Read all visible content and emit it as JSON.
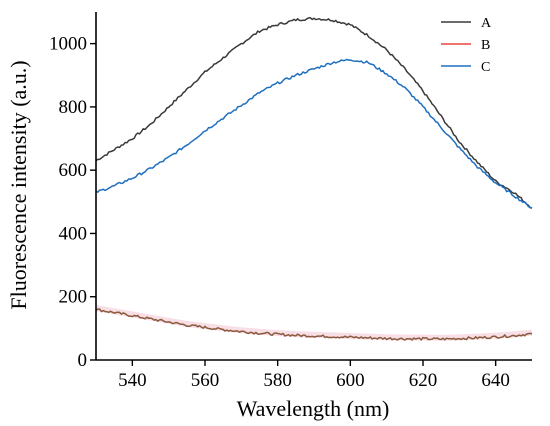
{
  "chart_data": {
    "type": "line",
    "xlabel": "Wavelength (nm)",
    "ylabel": "Fluorescence intensity (a.u.)",
    "xlim": [
      530,
      650
    ],
    "ylim": [
      0,
      1100
    ],
    "xticks": [
      540,
      560,
      580,
      600,
      620,
      640
    ],
    "yticks": [
      0,
      200,
      400,
      600,
      800,
      1000
    ],
    "grid": false,
    "legend_position": "top-right",
    "x": [
      530,
      535,
      540,
      545,
      550,
      555,
      560,
      565,
      570,
      575,
      580,
      585,
      590,
      595,
      600,
      605,
      610,
      615,
      620,
      625,
      630,
      635,
      640,
      645,
      650
    ],
    "series": [
      {
        "name": "A",
        "color": "#3a3a3a",
        "values": [
          630,
          665,
          700,
          745,
          800,
          855,
          910,
          955,
          1000,
          1040,
          1060,
          1075,
          1080,
          1075,
          1060,
          1025,
          980,
          920,
          850,
          770,
          690,
          625,
          565,
          530,
          480
        ]
      },
      {
        "name": "B",
        "color": "#e8463e",
        "trace_color": "#8b5a3c",
        "values": [
          160,
          150,
          140,
          130,
          120,
          110,
          103,
          96,
          90,
          85,
          81,
          78,
          76,
          74,
          72,
          70,
          68,
          67,
          67,
          66,
          68,
          70,
          73,
          77,
          83
        ]
      },
      {
        "name": "C",
        "color": "#1f6fc0",
        "values": [
          530,
          550,
          575,
          605,
          640,
          680,
          725,
          765,
          805,
          845,
          875,
          900,
          920,
          940,
          950,
          940,
          905,
          860,
          800,
          735,
          670,
          610,
          560,
          520,
          480
        ]
      }
    ]
  }
}
